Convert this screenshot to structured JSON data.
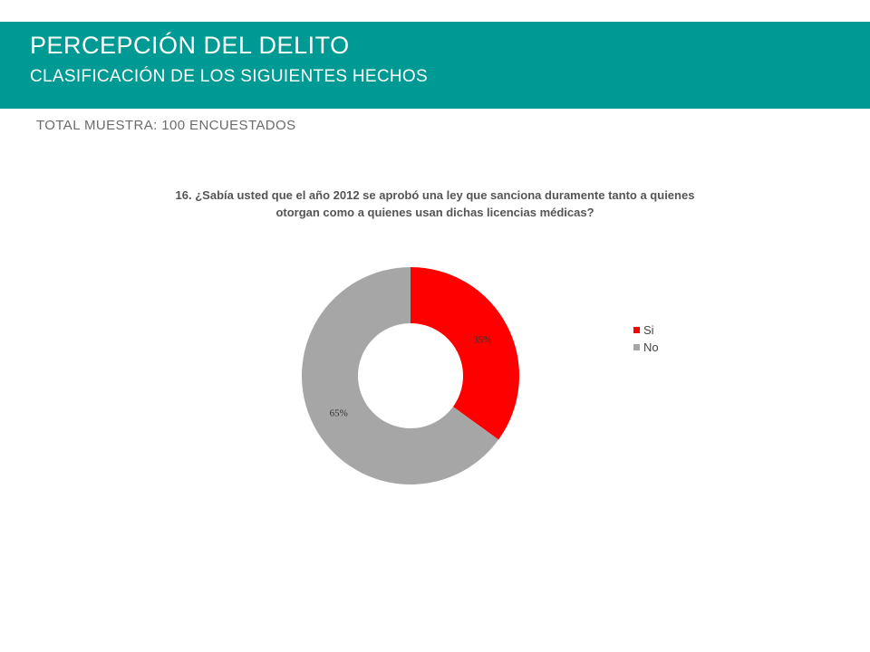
{
  "header": {
    "title": "PERCEPCIÓN DEL DELITO",
    "subtitle": "CLASIFICACIÓN DE LOS SIGUIENTES HECHOS",
    "band_color": "#009a94"
  },
  "sample_note": "TOTAL MUESTRA: 100 ENCUESTADOS",
  "chart_data": {
    "type": "pie",
    "title": "16. ¿Sabía usted que el año 2012 se aprobó una ley que sanciona duramente tanto a quienes otorgan como a quienes usan dichas licencias médicas?",
    "categories": [
      "Si",
      "No"
    ],
    "values": [
      35,
      65
    ],
    "data_labels": [
      "35%",
      "65%"
    ],
    "colors": [
      "#ff0000",
      "#a6a6a6"
    ],
    "legend": "right",
    "donut": true
  }
}
